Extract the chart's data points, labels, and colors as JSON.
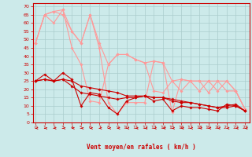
{
  "background_color": "#cceaea",
  "grid_color": "#aacccc",
  "line_color_dark": "#cc0000",
  "line_color_light": "#ff9999",
  "xlabel": "Vent moyen/en rafales ( km/h )",
  "xlabel_color": "#cc0000",
  "ylabel_ticks": [
    0,
    5,
    10,
    15,
    20,
    25,
    30,
    35,
    40,
    45,
    50,
    55,
    60,
    65,
    70
  ],
  "xlabel_ticks": [
    0,
    1,
    2,
    3,
    4,
    5,
    6,
    7,
    8,
    9,
    10,
    11,
    12,
    13,
    14,
    15,
    16,
    17,
    18,
    19,
    20,
    21,
    22,
    23
  ],
  "xlim": [
    -0.3,
    23.5
  ],
  "ylim": [
    0,
    72
  ],
  "series_dark": [
    [
      25,
      29,
      25,
      30,
      26,
      10,
      18,
      17,
      9,
      5,
      13,
      15,
      16,
      13,
      14,
      7,
      10,
      9,
      9,
      8,
      7,
      11,
      10,
      7
    ],
    [
      25,
      26,
      25,
      26,
      22,
      18,
      17,
      16,
      15,
      14,
      15,
      15,
      16,
      15,
      15,
      13,
      12,
      12,
      11,
      10,
      9,
      10,
      11,
      7
    ],
    [
      25,
      26,
      25,
      26,
      25,
      22,
      21,
      20,
      19,
      18,
      16,
      16,
      16,
      15,
      15,
      14,
      13,
      12,
      11,
      10,
      9,
      9,
      10,
      7
    ]
  ],
  "series_light": [
    [
      48,
      65,
      60,
      68,
      45,
      35,
      13,
      12,
      35,
      41,
      41,
      38,
      36,
      19,
      18,
      25,
      19,
      25,
      19,
      25,
      19,
      25,
      19,
      8
    ],
    [
      48,
      65,
      67,
      65,
      55,
      48,
      65,
      45,
      12,
      5,
      12,
      12,
      12,
      37,
      36,
      6,
      26,
      25,
      25,
      18,
      25,
      19,
      19,
      8
    ],
    [
      48,
      65,
      67,
      68,
      55,
      48,
      65,
      48,
      35,
      41,
      41,
      38,
      36,
      37,
      36,
      25,
      26,
      25,
      25,
      25,
      25,
      25,
      19,
      8
    ]
  ],
  "arrow_color": "#cc0000"
}
